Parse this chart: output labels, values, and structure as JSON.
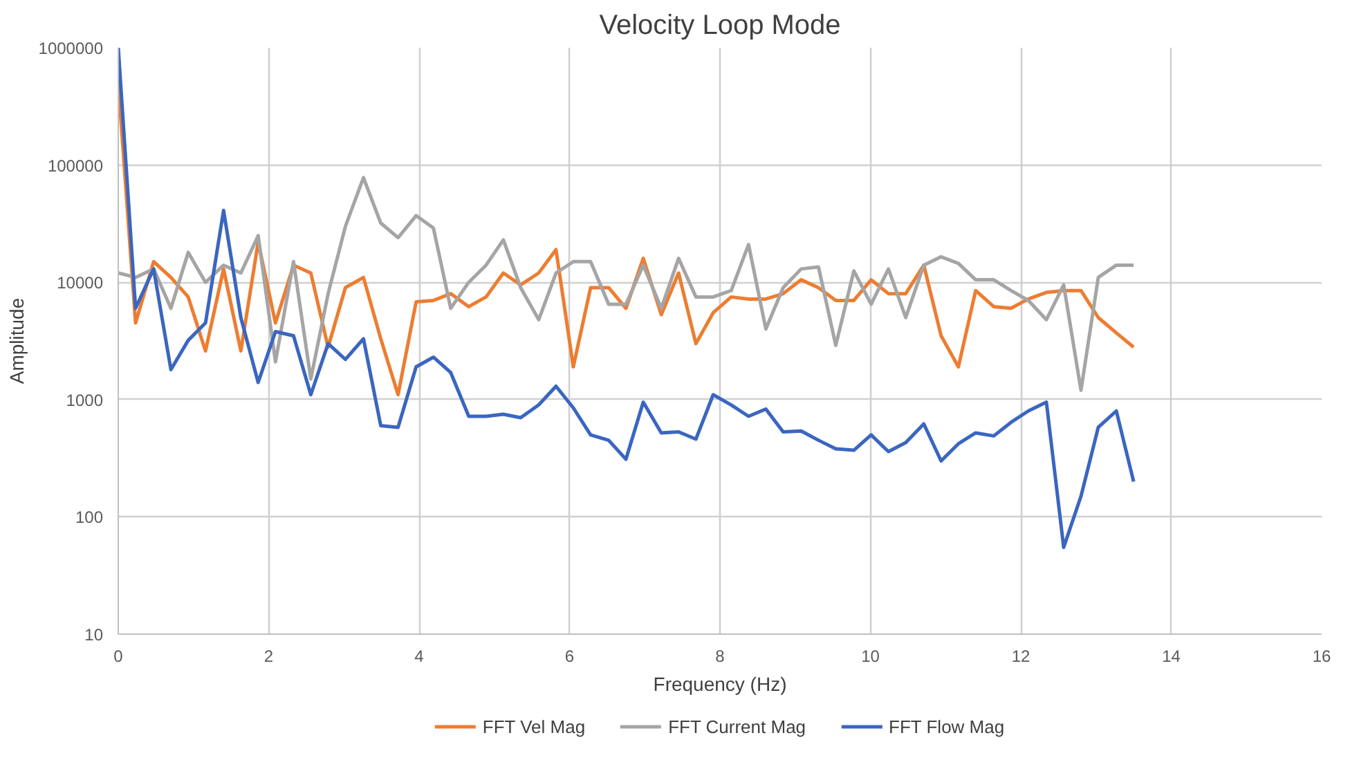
{
  "chart_data": {
    "type": "line",
    "title": "Velocity Loop Mode",
    "xlabel": "Frequency (Hz)",
    "ylabel": "Amplitude",
    "x": [
      0,
      0.23,
      0.47,
      0.7,
      0.93,
      1.16,
      1.4,
      1.63,
      1.86,
      2.09,
      2.33,
      2.56,
      2.79,
      3.02,
      3.26,
      3.49,
      3.72,
      3.96,
      4.19,
      4.42,
      4.66,
      4.89,
      5.12,
      5.35,
      5.59,
      5.82,
      6.05,
      6.28,
      6.52,
      6.75,
      6.98,
      7.22,
      7.45,
      7.68,
      7.91,
      8.15,
      8.38,
      8.61,
      8.84,
      9.08,
      9.31,
      9.54,
      9.78,
      10.01,
      10.24,
      10.47,
      10.71,
      10.94,
      11.17,
      11.4,
      11.64,
      11.87,
      12.1,
      12.34,
      12.57,
      12.8,
      13.03,
      13.27,
      13.5
    ],
    "series": [
      {
        "name": "FFT Vel Mag",
        "color": "#ed7d31",
        "values": [
          500000,
          4500,
          15000,
          11000,
          7500,
          2600,
          13000,
          2600,
          22000,
          4500,
          14000,
          12000,
          2800,
          9000,
          11000,
          3300,
          1100,
          6800,
          7000,
          8000,
          6200,
          7500,
          12000,
          9500,
          12000,
          19000,
          1900,
          9000,
          9000,
          6000,
          16000,
          5300,
          12000,
          3000,
          5500,
          7500,
          7200,
          7200,
          8000,
          10500,
          9000,
          7000,
          7000,
          10500,
          8000,
          8000,
          14000,
          3500,
          1900,
          8500,
          6200,
          6000,
          7200,
          8200,
          8500,
          8500,
          5000,
          3700,
          2800
        ]
      },
      {
        "name": "FFT Current Mag",
        "color": "#a5a5a5",
        "values": [
          12000,
          11000,
          13000,
          6000,
          18000,
          10000,
          14000,
          12000,
          25000,
          2100,
          15000,
          1500,
          8000,
          30000,
          78000,
          32000,
          24000,
          37000,
          29000,
          6000,
          10000,
          14000,
          23000,
          9000,
          4800,
          12000,
          15000,
          15000,
          6500,
          6500,
          14000,
          6000,
          16000,
          7500,
          7500,
          8500,
          21000,
          4000,
          9000,
          13000,
          13500,
          2900,
          12500,
          6500,
          13000,
          5000,
          14000,
          16500,
          14500,
          10500,
          10500,
          8500,
          7000,
          4800,
          9500,
          1200,
          11000,
          14000,
          14000
        ]
      },
      {
        "name": "FFT Flow Mag",
        "color": "#3a66c0",
        "values": [
          1000000,
          6000,
          13000,
          1800,
          3200,
          4500,
          41000,
          5000,
          1400,
          3800,
          3500,
          1100,
          3000,
          2200,
          3300,
          600,
          580,
          1900,
          2300,
          1700,
          720,
          720,
          750,
          700,
          900,
          1300,
          850,
          500,
          450,
          310,
          950,
          520,
          530,
          460,
          1100,
          900,
          720,
          830,
          530,
          540,
          450,
          380,
          370,
          500,
          360,
          430,
          620,
          300,
          420,
          520,
          490,
          640,
          800,
          950,
          55,
          150,
          580,
          800,
          200
        ]
      }
    ],
    "xlim": [
      0,
      16
    ],
    "xticks": [
      0,
      2,
      4,
      6,
      8,
      10,
      12,
      14,
      16
    ],
    "ylim": [
      10,
      1000000
    ],
    "yticks": [
      10,
      100,
      1000,
      10000,
      100000,
      1000000
    ],
    "log": true,
    "grid": true,
    "legend": "bottom",
    "marker": "none",
    "line_style": "solid"
  }
}
